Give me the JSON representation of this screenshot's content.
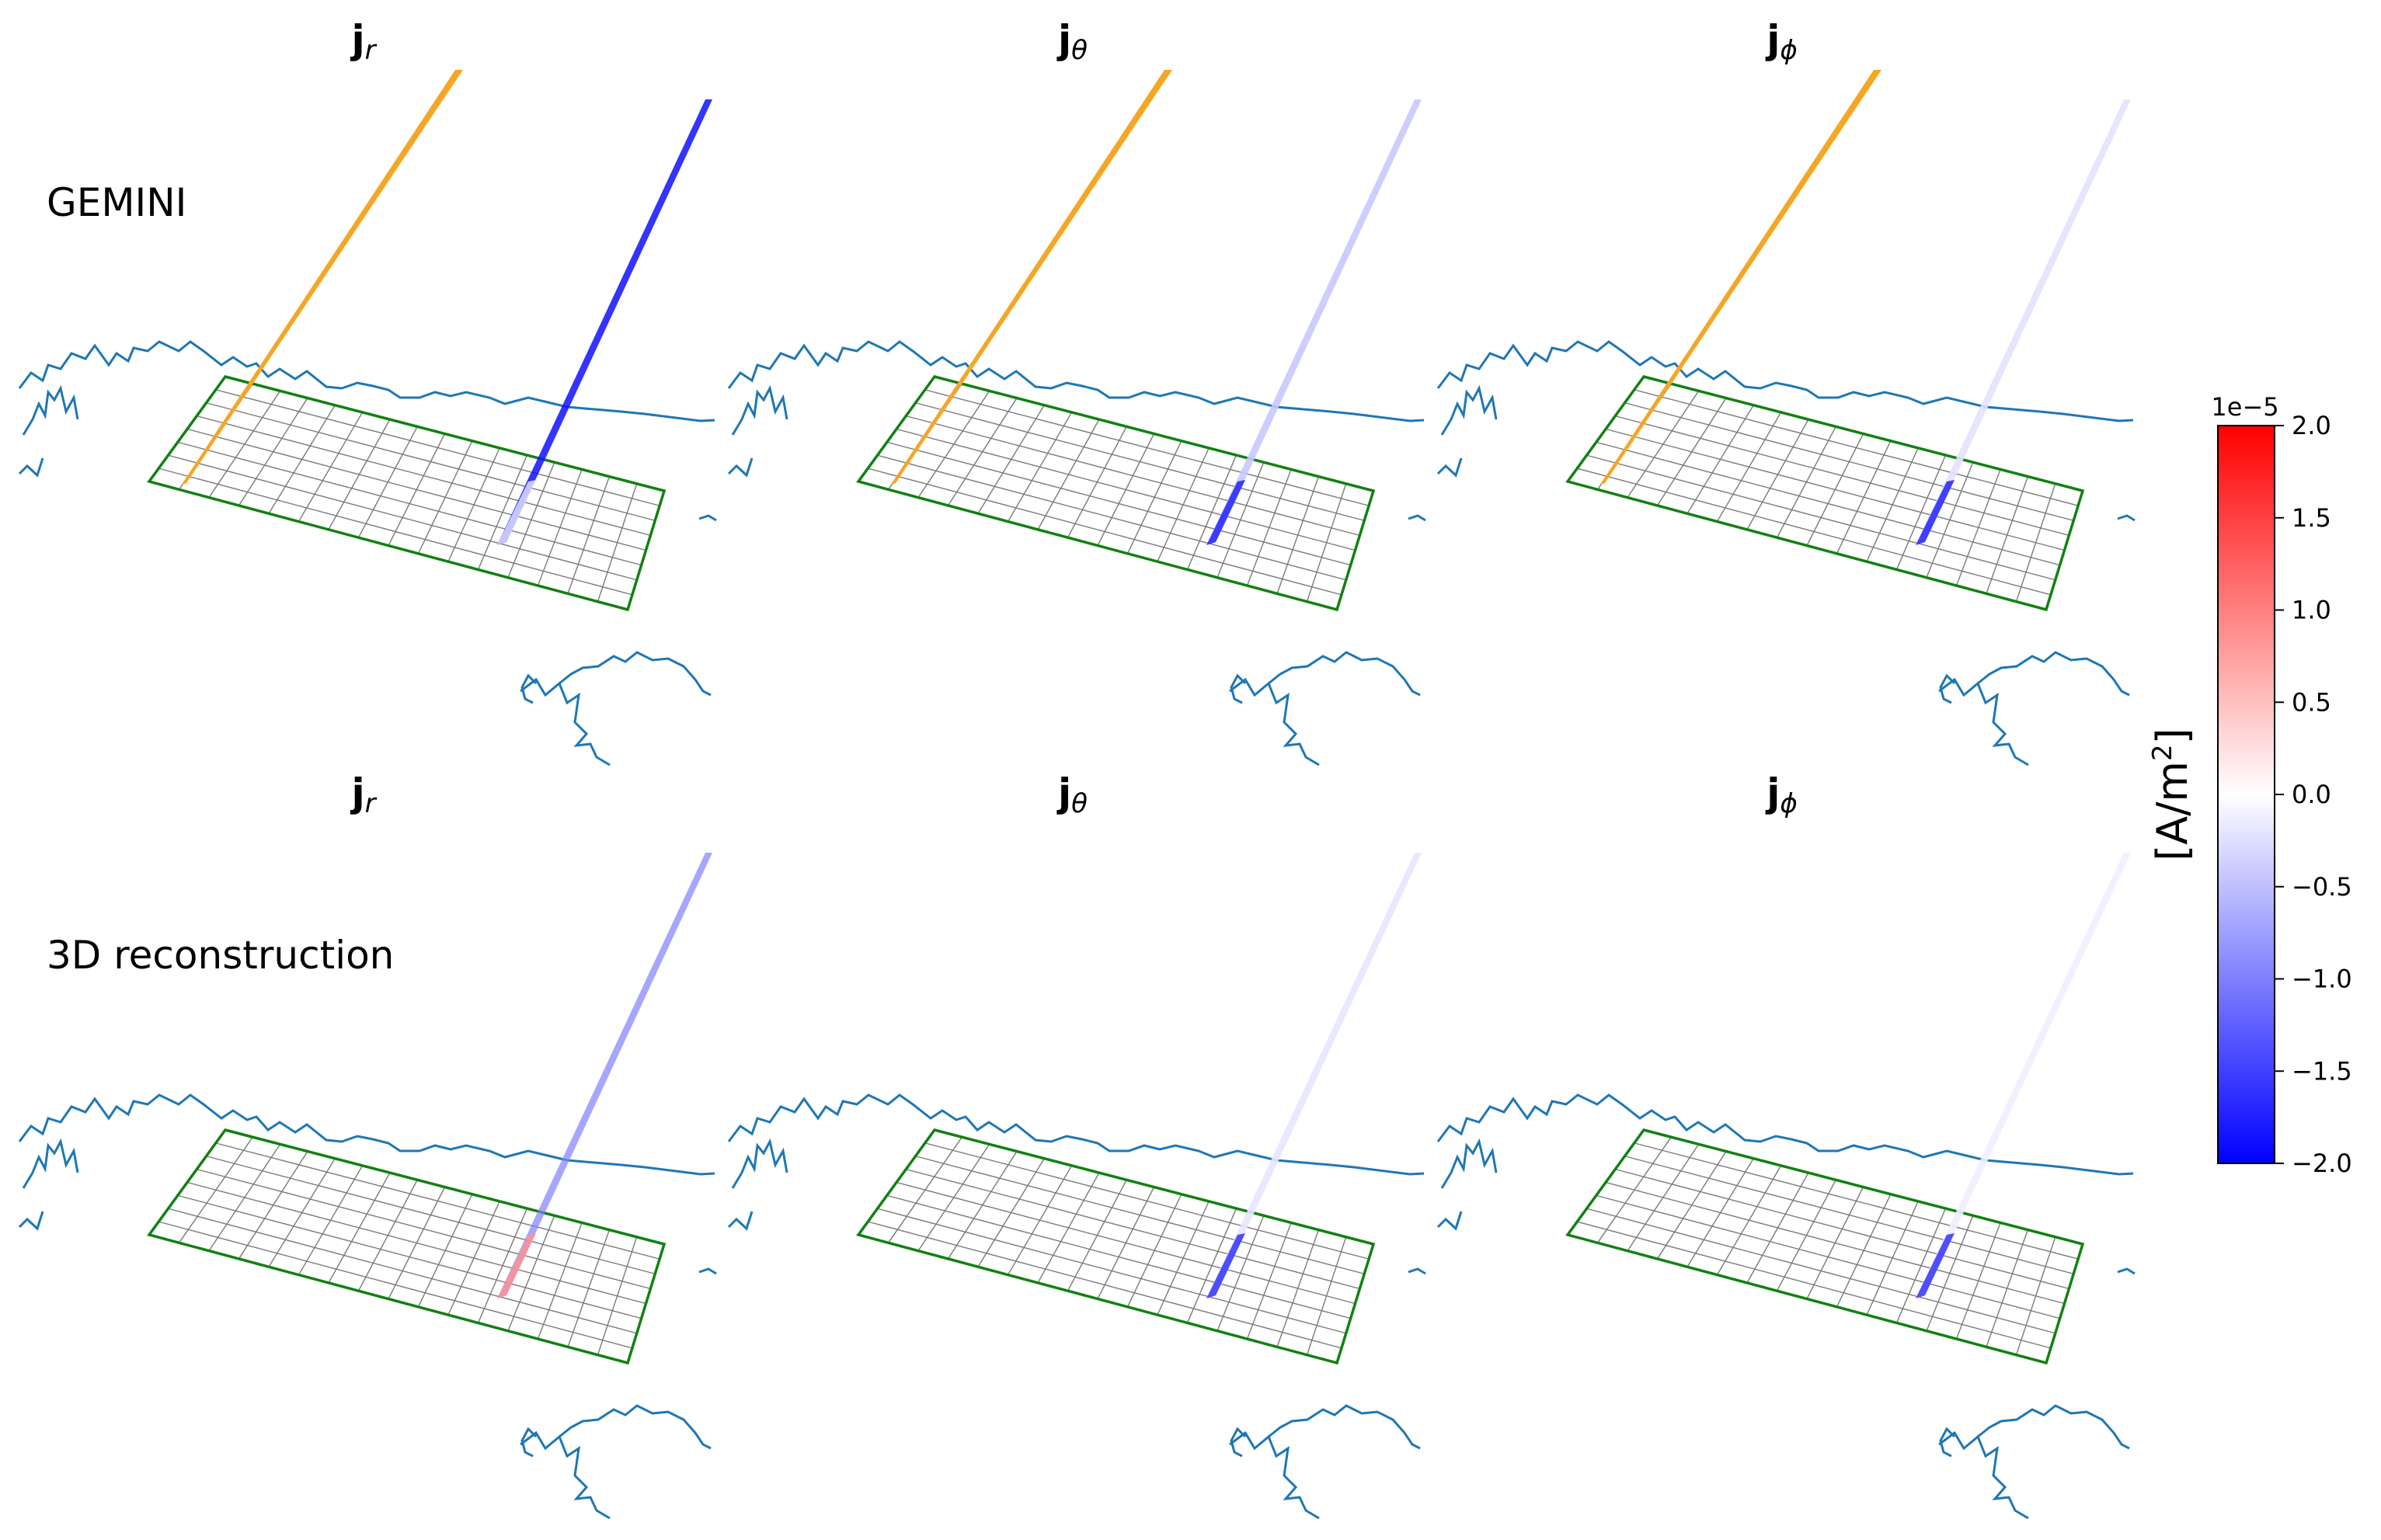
{
  "figure": {
    "rows": [
      {
        "label": "GEMINI",
        "panels": [
          {
            "title": "j",
            "subscript": "r",
            "beam_color": "#1010ff",
            "beam_opacity": 0.85,
            "tail_color": "#e0e0ff"
          },
          {
            "title": "j",
            "subscript": "θ",
            "beam_color": "#c8c8ff",
            "beam_opacity": 0.9,
            "tail_color": "#2222ff"
          },
          {
            "title": "j",
            "subscript": "ϕ",
            "beam_color": "#e2e2ff",
            "beam_opacity": 0.9,
            "tail_color": "#2222ff"
          }
        ]
      },
      {
        "label": "3D reconstruction",
        "panels": [
          {
            "title": "j",
            "subscript": "r",
            "beam_color": "#8080ff",
            "beam_opacity": 0.7,
            "tail_color": "#ff9090"
          },
          {
            "title": "j",
            "subscript": "θ",
            "beam_color": "#e6e6ff",
            "beam_opacity": 0.9,
            "tail_color": "#3333ff"
          },
          {
            "title": "j",
            "subscript": "ϕ",
            "beam_color": "#eeeeff",
            "beam_opacity": 0.9,
            "tail_color": "#3333ff"
          }
        ]
      }
    ],
    "colors": {
      "fieldline": "#f5a623",
      "coastline": "#1f77b4",
      "grid_outline": "#138013",
      "grid_lines": "#7a7a7a"
    },
    "colorbar": {
      "label": "[A/m²]",
      "label_main": "[A/m",
      "label_sup": "2",
      "label_end": "]",
      "exponent": "1e−5",
      "min": -2.0,
      "max": 2.0,
      "ticks": [
        {
          "value": 2.0,
          "label": "2.0"
        },
        {
          "value": 1.5,
          "label": "1.5"
        },
        {
          "value": 1.0,
          "label": "1.0"
        },
        {
          "value": 0.5,
          "label": "0.5"
        },
        {
          "value": 0.0,
          "label": "0.0"
        },
        {
          "value": -0.5,
          "label": "−0.5"
        },
        {
          "value": -1.0,
          "label": "−1.0"
        },
        {
          "value": -1.5,
          "label": "−1.5"
        },
        {
          "value": -2.0,
          "label": "−2.0"
        }
      ],
      "cmap": [
        "#0000ff",
        "#ffffff",
        "#ff0000"
      ]
    }
  }
}
